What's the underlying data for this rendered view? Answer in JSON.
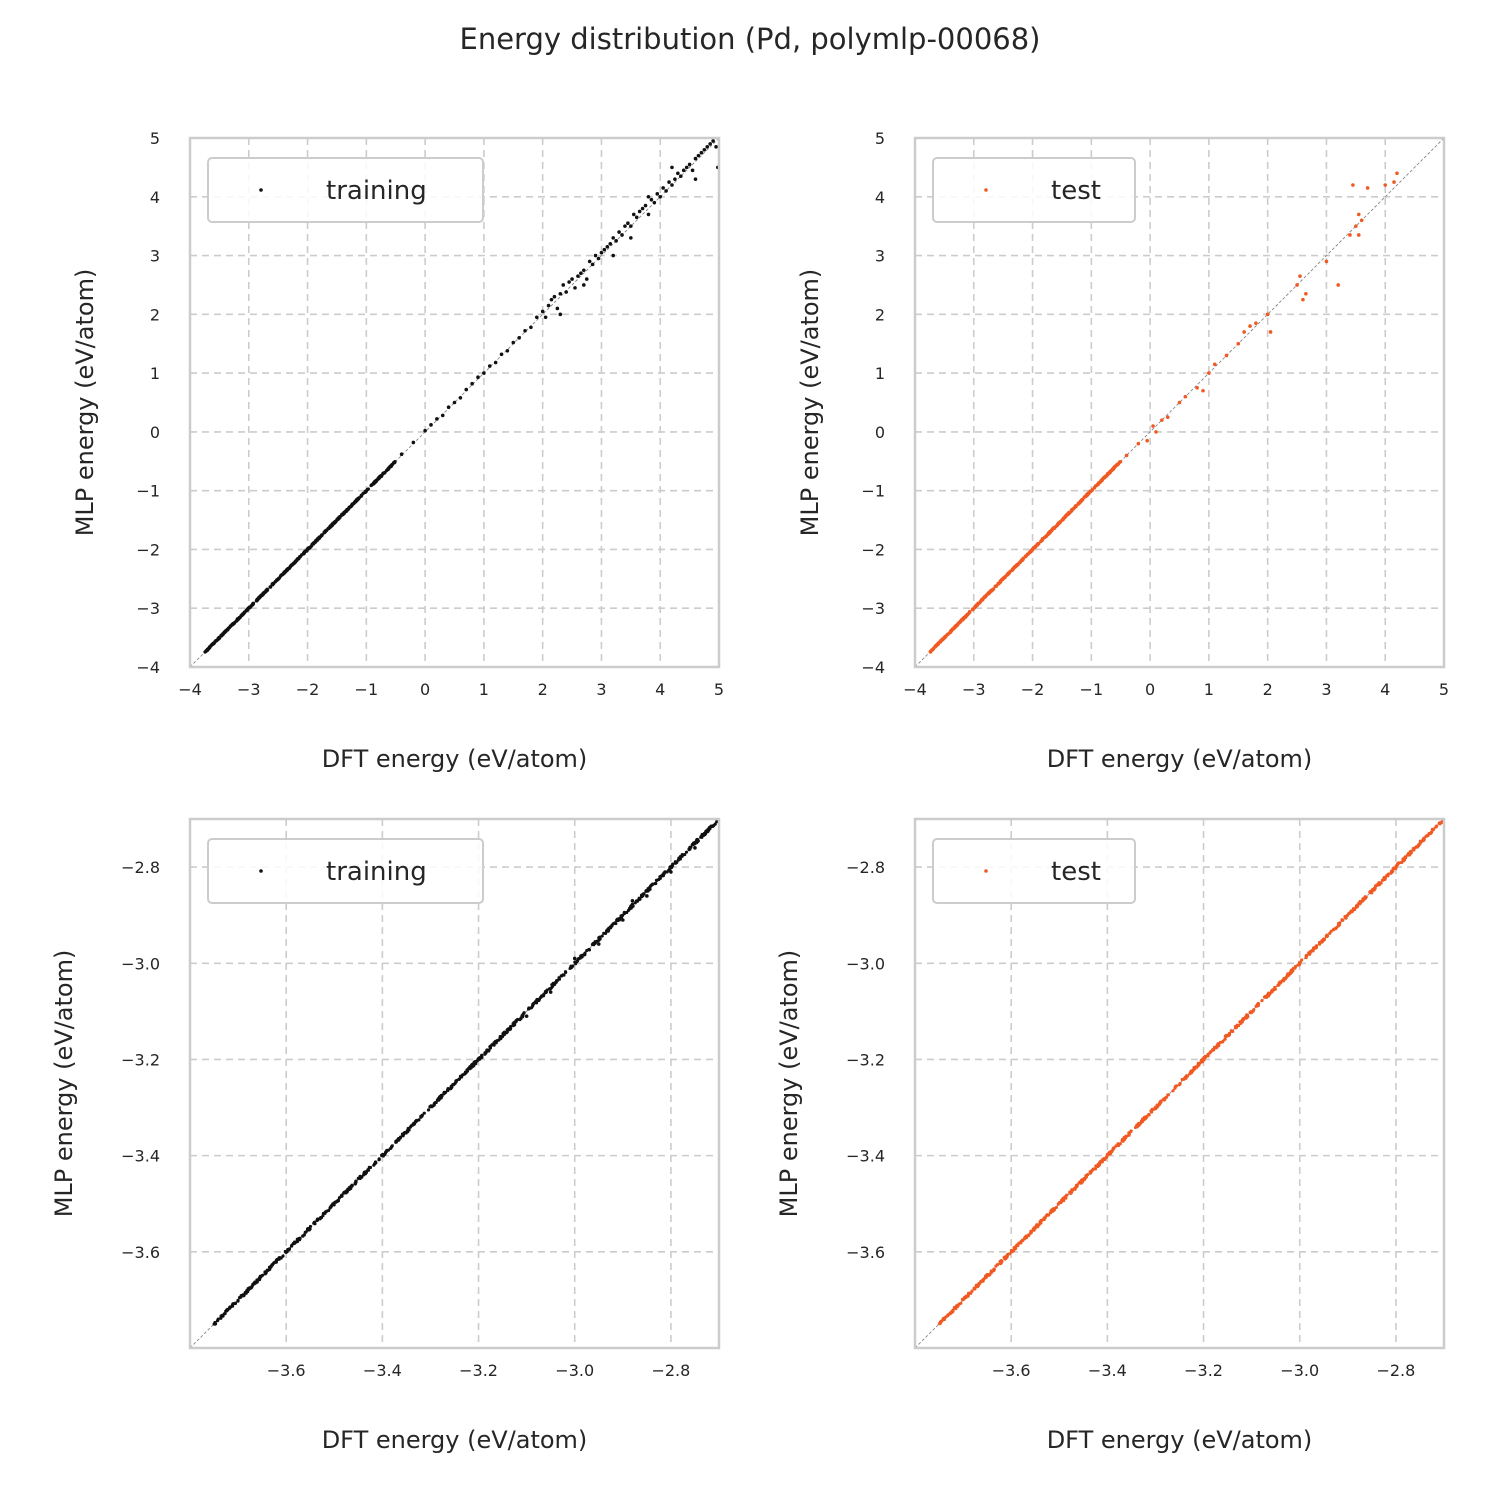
{
  "figure": {
    "title": "Energy distribution (Pd, polymlp-00068)"
  },
  "colors": {
    "training": "#111111",
    "test": "#f05a22",
    "diagonal": "#888888",
    "grid": "#cccccc",
    "frame": "#cccccc"
  },
  "chart_data": [
    {
      "type": "scatter",
      "xlabel": "DFT energy (eV/atom)",
      "ylabel": "MLP energy (eV/atom)",
      "xlim": [
        -4,
        5
      ],
      "ylim": [
        -4,
        5
      ],
      "xticks": [
        -4,
        -3,
        -2,
        -1,
        0,
        1,
        2,
        3,
        4,
        5
      ],
      "yticks": [
        -4,
        -3,
        -2,
        -1,
        0,
        1,
        2,
        3,
        4,
        5
      ],
      "xtick_labels": [
        "−4",
        "−3",
        "−2",
        "−1",
        "0",
        "1",
        "2",
        "3",
        "4",
        "5"
      ],
      "ytick_labels": [
        "−4",
        "−3",
        "−2",
        "−1",
        "0",
        "1",
        "2",
        "3",
        "4",
        "5"
      ],
      "grid": true,
      "legend": "upper-left",
      "diagonal": true,
      "series": [
        {
          "name": "training",
          "line": [
            -3.75,
            -0.5
          ],
          "points": [
            [
              -0.4,
              -0.38
            ],
            [
              -0.2,
              -0.18
            ],
            [
              0.0,
              0.02
            ],
            [
              0.1,
              0.12
            ],
            [
              0.2,
              0.22
            ],
            [
              0.3,
              0.28
            ],
            [
              0.4,
              0.42
            ],
            [
              0.5,
              0.5
            ],
            [
              0.6,
              0.58
            ],
            [
              0.7,
              0.72
            ],
            [
              0.8,
              0.82
            ],
            [
              0.9,
              0.93
            ],
            [
              1.0,
              1.0
            ],
            [
              1.1,
              1.12
            ],
            [
              1.2,
              1.18
            ],
            [
              1.3,
              1.32
            ],
            [
              1.4,
              1.38
            ],
            [
              1.5,
              1.52
            ],
            [
              1.6,
              1.6
            ],
            [
              1.7,
              1.72
            ],
            [
              1.8,
              1.78
            ],
            [
              1.9,
              1.95
            ],
            [
              2.0,
              2.05
            ],
            [
              2.05,
              1.95
            ],
            [
              2.1,
              2.15
            ],
            [
              2.15,
              2.25
            ],
            [
              2.2,
              2.3
            ],
            [
              2.25,
              2.1
            ],
            [
              2.3,
              2.35
            ],
            [
              2.35,
              2.5
            ],
            [
              2.4,
              2.38
            ],
            [
              2.45,
              2.55
            ],
            [
              2.5,
              2.6
            ],
            [
              2.55,
              2.45
            ],
            [
              2.6,
              2.65
            ],
            [
              2.65,
              2.7
            ],
            [
              2.7,
              2.75
            ],
            [
              2.75,
              2.6
            ],
            [
              2.8,
              2.9
            ],
            [
              2.85,
              2.85
            ],
            [
              2.9,
              3.0
            ],
            [
              2.95,
              2.95
            ],
            [
              3.0,
              3.05
            ],
            [
              3.05,
              3.1
            ],
            [
              3.1,
              3.15
            ],
            [
              3.15,
              3.2
            ],
            [
              3.2,
              3.3
            ],
            [
              3.25,
              3.25
            ],
            [
              3.3,
              3.4
            ],
            [
              3.35,
              3.35
            ],
            [
              3.4,
              3.5
            ],
            [
              3.45,
              3.55
            ],
            [
              3.5,
              3.5
            ],
            [
              3.55,
              3.7
            ],
            [
              3.6,
              3.65
            ],
            [
              3.65,
              3.75
            ],
            [
              3.7,
              3.8
            ],
            [
              3.75,
              3.85
            ],
            [
              3.8,
              3.7
            ],
            [
              3.85,
              3.95
            ],
            [
              3.9,
              3.9
            ],
            [
              3.95,
              4.05
            ],
            [
              4.0,
              4.0
            ],
            [
              4.05,
              4.15
            ],
            [
              4.1,
              4.1
            ],
            [
              4.15,
              4.25
            ],
            [
              4.2,
              4.2
            ],
            [
              4.25,
              4.3
            ],
            [
              4.3,
              4.4
            ],
            [
              4.35,
              4.35
            ],
            [
              4.4,
              4.45
            ],
            [
              4.45,
              4.5
            ],
            [
              4.5,
              4.55
            ],
            [
              4.55,
              4.45
            ],
            [
              4.6,
              4.65
            ],
            [
              4.65,
              4.7
            ],
            [
              4.7,
              4.75
            ],
            [
              4.75,
              4.8
            ],
            [
              4.8,
              4.85
            ],
            [
              4.85,
              4.9
            ],
            [
              4.9,
              4.95
            ],
            [
              4.95,
              4.85
            ],
            [
              4.98,
              4.5
            ],
            [
              4.6,
              4.3
            ],
            [
              4.2,
              4.5
            ],
            [
              3.8,
              4.0
            ],
            [
              3.5,
              3.3
            ],
            [
              3.2,
              3.0
            ],
            [
              2.7,
              2.5
            ],
            [
              2.3,
              2.0
            ]
          ]
        }
      ]
    },
    {
      "type": "scatter",
      "xlabel": "DFT energy (eV/atom)",
      "ylabel": "MLP energy (eV/atom)",
      "xlim": [
        -4,
        5
      ],
      "ylim": [
        -4,
        5
      ],
      "xticks": [
        -4,
        -3,
        -2,
        -1,
        0,
        1,
        2,
        3,
        4,
        5
      ],
      "yticks": [
        -4,
        -3,
        -2,
        -1,
        0,
        1,
        2,
        3,
        4,
        5
      ],
      "xtick_labels": [
        "−4",
        "−3",
        "−2",
        "−1",
        "0",
        "1",
        "2",
        "3",
        "4",
        "5"
      ],
      "ytick_labels": [
        "−4",
        "−3",
        "−2",
        "−1",
        "0",
        "1",
        "2",
        "3",
        "4",
        "5"
      ],
      "grid": true,
      "legend": "upper-left",
      "diagonal": true,
      "series": [
        {
          "name": "test",
          "line": [
            -3.75,
            -0.5
          ],
          "points": [
            [
              -0.4,
              -0.4
            ],
            [
              -0.2,
              -0.2
            ],
            [
              -0.05,
              -0.15
            ],
            [
              0.05,
              0.1
            ],
            [
              0.1,
              0.0
            ],
            [
              0.2,
              0.2
            ],
            [
              0.3,
              0.25
            ],
            [
              0.5,
              0.5
            ],
            [
              0.6,
              0.6
            ],
            [
              0.8,
              0.75
            ],
            [
              0.9,
              0.7
            ],
            [
              1.0,
              1.0
            ],
            [
              1.1,
              1.15
            ],
            [
              1.3,
              1.3
            ],
            [
              1.5,
              1.5
            ],
            [
              1.6,
              1.7
            ],
            [
              1.7,
              1.8
            ],
            [
              1.8,
              1.85
            ],
            [
              2.0,
              2.0
            ],
            [
              2.05,
              1.7
            ],
            [
              2.5,
              2.5
            ],
            [
              2.55,
              2.65
            ],
            [
              2.6,
              2.25
            ],
            [
              2.65,
              2.35
            ],
            [
              3.0,
              2.9
            ],
            [
              3.2,
              2.5
            ],
            [
              3.4,
              3.35
            ],
            [
              3.5,
              3.5
            ],
            [
              3.55,
              3.35
            ],
            [
              3.6,
              3.6
            ],
            [
              3.45,
              4.2
            ],
            [
              3.7,
              4.15
            ],
            [
              3.55,
              3.7
            ],
            [
              4.0,
              4.2
            ],
            [
              4.2,
              4.4
            ],
            [
              4.15,
              4.25
            ]
          ]
        }
      ]
    },
    {
      "type": "scatter",
      "xlabel": "DFT energy (eV/atom)",
      "ylabel": "MLP energy (eV/atom)",
      "xlim": [
        -3.8,
        -2.7
      ],
      "ylim": [
        -3.8,
        -2.7
      ],
      "xticks": [
        -3.6,
        -3.4,
        -3.2,
        -3.0,
        -2.8
      ],
      "yticks": [
        -3.6,
        -3.4,
        -3.2,
        -3.0,
        -2.8
      ],
      "xtick_labels": [
        "−3.6",
        "−3.4",
        "−3.2",
        "−3.0",
        "−2.8"
      ],
      "ytick_labels": [
        "−3.6",
        "−3.4",
        "−3.2",
        "−3.0",
        "−2.8"
      ],
      "grid": true,
      "legend": "upper-left",
      "diagonal": true,
      "series": [
        {
          "name": "training",
          "line": [
            -3.75,
            -2.7
          ],
          "points": [
            [
              -3.1,
              -3.11
            ],
            [
              -3.05,
              -3.06
            ],
            [
              -2.95,
              -2.96
            ],
            [
              -2.9,
              -2.91
            ],
            [
              -2.85,
              -2.86
            ],
            [
              -2.8,
              -2.81
            ],
            [
              -2.75,
              -2.76
            ],
            [
              -3.0,
              -2.99
            ],
            [
              -2.88,
              -2.87
            ]
          ]
        }
      ]
    },
    {
      "type": "scatter",
      "xlabel": "DFT energy (eV/atom)",
      "ylabel": "MLP energy (eV/atom)",
      "xlim": [
        -3.8,
        -2.7
      ],
      "ylim": [
        -3.8,
        -2.7
      ],
      "xticks": [
        -3.6,
        -3.4,
        -3.2,
        -3.0,
        -2.8
      ],
      "yticks": [
        -3.6,
        -3.4,
        -3.2,
        -3.0,
        -2.8
      ],
      "xtick_labels": [
        "−3.6",
        "−3.4",
        "−3.2",
        "−3.0",
        "−2.8"
      ],
      "ytick_labels": [
        "−3.6",
        "−3.4",
        "−3.2",
        "−3.0",
        "−2.8"
      ],
      "grid": true,
      "legend": "upper-left",
      "diagonal": true,
      "series": [
        {
          "name": "test",
          "line": [
            -3.75,
            -2.7
          ],
          "points": [
            [
              -3.62,
              -3.62
            ],
            [
              -3.45,
              -3.45
            ],
            [
              -3.3,
              -3.3
            ],
            [
              -3.15,
              -3.15
            ],
            [
              -3.0,
              -3.0
            ],
            [
              -2.95,
              -2.95
            ],
            [
              -2.85,
              -2.85
            ],
            [
              -2.78,
              -2.78
            ]
          ]
        }
      ]
    }
  ]
}
